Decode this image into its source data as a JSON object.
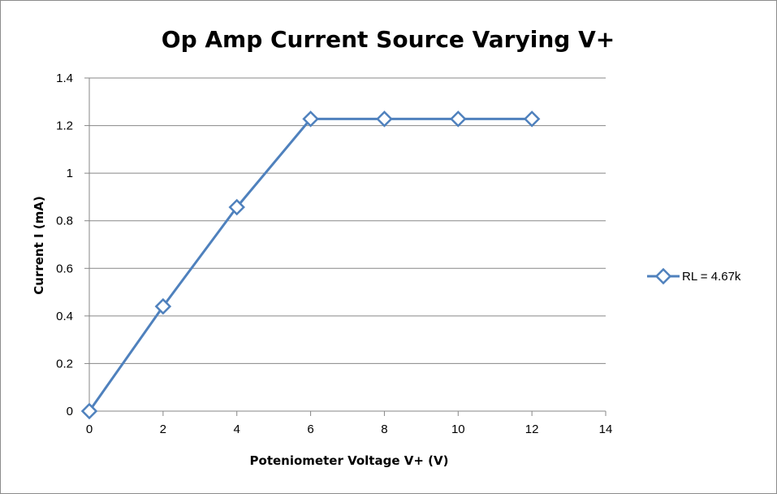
{
  "chart_data": {
    "type": "line",
    "title": "Op Amp Current Source Varying V+",
    "xlabel": "Poteniometer Voltage V+ (V)",
    "ylabel": "Current I (mA)",
    "xlim": [
      0,
      14
    ],
    "ylim": [
      0,
      1.4
    ],
    "xticks": [
      "0",
      "2",
      "4",
      "6",
      "8",
      "10",
      "12",
      "14"
    ],
    "yticks": [
      "0",
      "0.2",
      "0.4",
      "0.6",
      "0.8",
      "1",
      "1.2",
      "1.4"
    ],
    "grid": "horizontal",
    "legend_position": "right",
    "series": [
      {
        "name": "RL = 4.67k",
        "color": "#4f81bd",
        "marker": "diamond-open",
        "x": [
          0,
          2,
          4,
          6,
          8,
          10,
          12
        ],
        "y": [
          0,
          0.44,
          0.857,
          1.228,
          1.228,
          1.228,
          1.228
        ]
      }
    ]
  }
}
